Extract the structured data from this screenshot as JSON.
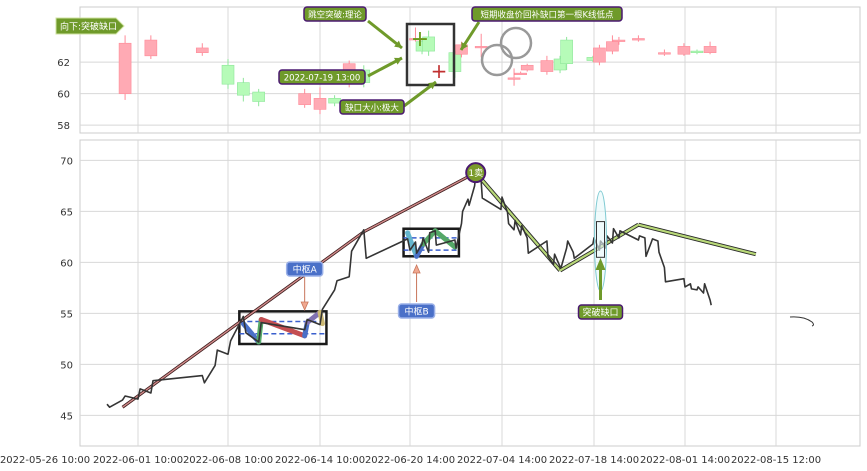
{
  "colors": {
    "up": "#ffaab4",
    "up_edge": "#ff8a98",
    "down": "#b6fbb8",
    "down_edge": "#8ee69a",
    "annotation_fill": "#6f9a2a",
    "annotation_edge": "#4a1870",
    "price_line": "#353535",
    "stroke_main": "#d08a8a",
    "stroke_green": "#b8d878",
    "zs_border": "#1a1a1a",
    "zs_dash": "#3a5fcd",
    "label_blue": "#4a70c8",
    "grid": "#d8d8d8"
  },
  "chart_data": [
    {
      "type": "candlestick",
      "panel": "top",
      "ylim": [
        57.5,
        65.5
      ],
      "yticks": [
        "58",
        "60",
        "62"
      ],
      "grid": true,
      "candles": [
        {
          "x": "2022-05-31 14:00",
          "o": 60.0,
          "c": 63.2,
          "h": 63.7,
          "l": 59.6
        },
        {
          "x": "2022-06-02 10:00",
          "o": 62.4,
          "c": 63.4,
          "h": 63.7,
          "l": 62.2
        },
        {
          "x": "2022-06-06 10:00",
          "o": 62.6,
          "c": 62.9,
          "h": 63.2,
          "l": 62.4
        },
        {
          "x": "2022-06-08 10:00",
          "o": 61.8,
          "c": 60.6,
          "h": 62.2,
          "l": 60.3
        },
        {
          "x": "2022-06-09 10:00",
          "o": 60.7,
          "c": 59.9,
          "h": 61.0,
          "l": 59.5
        },
        {
          "x": "2022-06-10 10:00",
          "o": 60.1,
          "c": 59.5,
          "h": 60.3,
          "l": 59.2
        },
        {
          "x": "2022-06-13 10:00",
          "o": 59.3,
          "c": 60.0,
          "h": 60.3,
          "l": 59.1
        },
        {
          "x": "2022-06-14 10:00",
          "o": 59.0,
          "c": 59.7,
          "h": 60.4,
          "l": 58.7
        },
        {
          "x": "2022-06-15 10:00",
          "o": 59.7,
          "c": 59.4,
          "h": 59.9,
          "l": 59.2
        },
        {
          "x": "2022-06-16 10:00",
          "o": 60.6,
          "c": 61.9,
          "h": 62.1,
          "l": 60.4
        },
        {
          "x": "2022-06-17 10:00",
          "o": 61.5,
          "c": 60.7,
          "h": 61.8,
          "l": 60.4
        },
        {
          "x": "2022-06-21 10:00",
          "o": 63.5,
          "c": 63.5,
          "h": 64.2,
          "l": 63.3
        },
        {
          "x": "2022-06-22 10:00",
          "o": 63.3,
          "c": 62.7,
          "h": 63.5,
          "l": 62.5
        },
        {
          "x": "2022-06-23 10:00",
          "o": 63.6,
          "c": 62.7,
          "h": 64.0,
          "l": 62.4
        },
        {
          "x": "2022-06-27 10:00",
          "o": 62.6,
          "c": 61.4,
          "h": 62.7,
          "l": 61.0
        },
        {
          "x": "2022-06-28 10:00",
          "o": 62.5,
          "c": 63.1,
          "h": 63.3,
          "l": 62.3
        },
        {
          "x": "2022-07-01 10:00",
          "o": 63.0,
          "c": 63.0,
          "h": 63.8,
          "l": 62.3
        },
        {
          "x": "2022-07-06 10:00",
          "o": 61.0,
          "c": 61.0,
          "h": 61.6,
          "l": 60.5
        },
        {
          "x": "2022-07-07 10:00",
          "o": 61.3,
          "c": 61.3,
          "h": 61.4,
          "l": 61.2
        },
        {
          "x": "2022-07-08 10:00",
          "o": 61.5,
          "c": 61.8,
          "h": 61.9,
          "l": 61.4
        },
        {
          "x": "2022-07-11 10:00",
          "o": 61.4,
          "c": 62.1,
          "h": 62.4,
          "l": 61.2
        },
        {
          "x": "2022-07-13 10:00",
          "o": 62.2,
          "c": 61.5,
          "h": 62.4,
          "l": 61.3
        },
        {
          "x": "2022-07-14 10:00",
          "o": 63.4,
          "c": 61.9,
          "h": 63.6,
          "l": 61.5
        },
        {
          "x": "2022-07-18 10:00",
          "o": 62.3,
          "c": 62.1,
          "h": 62.4,
          "l": 62.0
        },
        {
          "x": "2022-07-19 10:00",
          "o": 62.0,
          "c": 62.9,
          "h": 63.1,
          "l": 61.8
        },
        {
          "x": "2022-07-21 10:00",
          "o": 62.7,
          "c": 63.3,
          "h": 63.7,
          "l": 62.5
        },
        {
          "x": "2022-07-22 10:00",
          "o": 63.4,
          "c": 63.4,
          "h": 63.6,
          "l": 63.1
        },
        {
          "x": "2022-07-25 10:00",
          "o": 63.4,
          "c": 63.5,
          "h": 63.7,
          "l": 63.3
        },
        {
          "x": "2022-07-29 10:00",
          "o": 62.6,
          "c": 62.6,
          "h": 62.8,
          "l": 62.4
        },
        {
          "x": "2022-08-01 10:00",
          "o": 62.5,
          "c": 63.0,
          "h": 63.2,
          "l": 62.4
        },
        {
          "x": "2022-08-03 10:00",
          "o": 62.7,
          "c": 62.6,
          "h": 62.8,
          "l": 62.5
        },
        {
          "x": "2022-08-05 10:00",
          "o": 62.6,
          "c": 63.0,
          "h": 63.3,
          "l": 62.5
        }
      ],
      "annotations": {
        "gap_label": "向下:突破缺口",
        "gap_type_label": "跳空突破:理论",
        "gap_time_label": "2022-07-19 13:00",
        "gap_size_label": "缺口大小:极大",
        "gap_target_label": "短期收盘价回补缺口第一根K线低点"
      }
    },
    {
      "type": "line",
      "panel": "bottom",
      "ylim": [
        42,
        72
      ],
      "yticks": [
        "45",
        "50",
        "55",
        "60",
        "65",
        "70"
      ],
      "grid": true,
      "xticks": [
        {
          "value": "2022-05-26 10:00",
          "label": "2022-05-26 10:00"
        },
        {
          "value": "2022-06-01 10:00",
          "label": "2022-06-01 10:00"
        },
        {
          "value": "2022-06-08 10:00",
          "label": "2022-06-08 10:00"
        },
        {
          "value": "2022-06-14 10:00",
          "label": "2022-06-14 10:00"
        },
        {
          "value": "2022-06-20 14:00",
          "label": "2022-06-20 14:00"
        },
        {
          "value": "2022-07-04 14:00",
          "label": "2022-07-04 14:00"
        },
        {
          "value": "2022-07-18 14:00",
          "label": "2022-07-18 14:00"
        },
        {
          "value": "2022-08-01 14:00",
          "label": "2022-08-01 14:00"
        },
        {
          "value": "2022-08-15 12:00",
          "label": "2022-08-15 12:00"
        }
      ],
      "close": [
        [
          "2022-05-30 10:00",
          46.1
        ],
        [
          "2022-05-30 14:00",
          45.8
        ],
        [
          "2022-05-31 10:00",
          46.5
        ],
        [
          "2022-05-31 14:00",
          46.9
        ],
        [
          "2022-06-01 10:00",
          46.6
        ],
        [
          "2022-06-01 14:00",
          47.6
        ],
        [
          "2022-06-02 10:00",
          47.2
        ],
        [
          "2022-06-02 14:00",
          48.4
        ],
        [
          "2022-06-06 10:00",
          48.9
        ],
        [
          "2022-06-06 14:00",
          48.2
        ],
        [
          "2022-06-07 10:00",
          49.9
        ],
        [
          "2022-06-07 14:00",
          51.4
        ],
        [
          "2022-06-08 10:00",
          51.0
        ],
        [
          "2022-06-08 14:00",
          52.3
        ],
        [
          "2022-06-09 10:00",
          54.7
        ],
        [
          "2022-06-09 14:00",
          53.1
        ],
        [
          "2022-06-10 10:00",
          52.2
        ],
        [
          "2022-06-10 14:00",
          54.1
        ],
        [
          "2022-06-13 10:00",
          53.4
        ],
        [
          "2022-06-13 14:00",
          54.4
        ],
        [
          "2022-06-14 10:00",
          53.9
        ],
        [
          "2022-06-14 14:00",
          55.4
        ],
        [
          "2022-06-15 10:00",
          57.3
        ],
        [
          "2022-06-15 14:00",
          58.2
        ],
        [
          "2022-06-16 10:00",
          58.6
        ],
        [
          "2022-06-16 14:00",
          61.1
        ],
        [
          "2022-06-17 10:00",
          63.2
        ],
        [
          "2022-06-17 14:00",
          60.4
        ],
        [
          "2022-06-20 10:00",
          62.3
        ],
        [
          "2022-06-20 14:00",
          61.2
        ],
        [
          "2022-06-21 10:00",
          62.0
        ],
        [
          "2022-06-21 14:00",
          60.9
        ],
        [
          "2022-06-22 10:00",
          61.8
        ],
        [
          "2022-06-22 14:00",
          62.4
        ],
        [
          "2022-06-23 10:00",
          61.0
        ],
        [
          "2022-06-23 14:00",
          62.9
        ],
        [
          "2022-06-24 10:00",
          63.1
        ],
        [
          "2022-06-24 14:00",
          61.7
        ],
        [
          "2022-06-27 10:00",
          62.2
        ],
        [
          "2022-06-27 14:00",
          61.4
        ],
        [
          "2022-06-28 10:00",
          63.8
        ],
        [
          "2022-06-28 14:00",
          65.0
        ],
        [
          "2022-06-29 10:00",
          66.2
        ],
        [
          "2022-06-29 14:00",
          65.6
        ],
        [
          "2022-06-30 10:00",
          67.5
        ],
        [
          "2022-06-30 14:00",
          68.6
        ],
        [
          "2022-07-01 10:00",
          67.9
        ],
        [
          "2022-07-01 14:00",
          66.3
        ],
        [
          "2022-07-04 10:00",
          65.2
        ],
        [
          "2022-07-04 14:00",
          66.4
        ],
        [
          "2022-07-05 10:00",
          64.9
        ],
        [
          "2022-07-05 14:00",
          63.8
        ],
        [
          "2022-07-06 10:00",
          63.2
        ],
        [
          "2022-07-06 14:00",
          64.1
        ],
        [
          "2022-07-07 10:00",
          62.7
        ],
        [
          "2022-07-07 14:00",
          63.6
        ],
        [
          "2022-07-08 10:00",
          62.4
        ],
        [
          "2022-07-08 14:00",
          60.9
        ],
        [
          "2022-07-11 10:00",
          62.1
        ],
        [
          "2022-07-11 14:00",
          60.6
        ],
        [
          "2022-07-12 10:00",
          59.8
        ],
        [
          "2022-07-12 14:00",
          60.8
        ],
        [
          "2022-07-13 10:00",
          59.6
        ],
        [
          "2022-07-13 14:00",
          59.5
        ],
        [
          "2022-07-14 10:00",
          61.4
        ],
        [
          "2022-07-14 14:00",
          62.1
        ],
        [
          "2022-07-15 10:00",
          61.0
        ],
        [
          "2022-07-15 14:00",
          60.4
        ],
        [
          "2022-07-18 10:00",
          61.8
        ],
        [
          "2022-07-18 14:00",
          62.4
        ],
        [
          "2022-07-19 10:00",
          61.2
        ],
        [
          "2022-07-19 14:00",
          62.1
        ],
        [
          "2022-07-20 10:00",
          61.4
        ],
        [
          "2022-07-20 14:00",
          62.6
        ],
        [
          "2022-07-21 10:00",
          61.9
        ],
        [
          "2022-07-21 14:00",
          63.3
        ],
        [
          "2022-07-22 10:00",
          62.4
        ],
        [
          "2022-07-22 14:00",
          63.1
        ],
        [
          "2022-07-25 10:00",
          62.2
        ],
        [
          "2022-07-25 14:00",
          62.6
        ],
        [
          "2022-07-26 10:00",
          62.4
        ],
        [
          "2022-07-26 14:00",
          60.6
        ],
        [
          "2022-07-27 10:00",
          62.0
        ],
        [
          "2022-07-27 14:00",
          62.3
        ],
        [
          "2022-07-28 10:00",
          62.1
        ],
        [
          "2022-07-28 14:00",
          61.0
        ],
        [
          "2022-07-29 10:00",
          59.5
        ],
        [
          "2022-07-29 14:00",
          58.1
        ],
        [
          "2022-08-01 10:00",
          58.4
        ],
        [
          "2022-08-01 14:00",
          57.6
        ],
        [
          "2022-08-02 10:00",
          57.9
        ],
        [
          "2022-08-02 14:00",
          57.4
        ],
        [
          "2022-08-03 10:00",
          57.3
        ],
        [
          "2022-08-03 14:00",
          57.6
        ],
        [
          "2022-08-04 10:00",
          57.0
        ],
        [
          "2022-08-04 14:00",
          57.9
        ],
        [
          "2022-08-05 10:00",
          56.3
        ],
        [
          "2022-08-05 14:00",
          55.8
        ]
      ],
      "stroke": [
        {
          "from": [
            "2022-05-31 10:00",
            45.8
          ],
          "to": [
            "2022-06-17 10:00",
            63.0
          ],
          "color": "main"
        },
        {
          "from": [
            "2022-06-17 10:00",
            63.0
          ],
          "to": [
            "2022-06-30 14:00",
            68.8
          ],
          "color": "main"
        },
        {
          "from": [
            "2022-06-30 14:00",
            68.8
          ],
          "to": [
            "2022-07-13 10:00",
            59.2
          ],
          "color": "green"
        },
        {
          "from": [
            "2022-07-13 10:00",
            59.2
          ],
          "to": [
            "2022-07-25 10:00",
            63.7
          ],
          "color": "green"
        },
        {
          "from": [
            "2022-07-25 10:00",
            63.7
          ],
          "to": [
            "2022-08-12 10:00",
            60.8
          ],
          "color": "green"
        }
      ],
      "zhongshu": [
        {
          "label": "中枢A",
          "x0": "2022-06-09 10:00",
          "x1": "2022-06-14 14:00",
          "y0": 52.0,
          "y1": 55.2,
          "band": [
            53.0,
            54.2
          ],
          "path": [
            [
              "2022-06-09 10:00",
              54.0,
              "#4a70c8"
            ],
            [
              "2022-06-10 10:00",
              52.2,
              "#55a868"
            ],
            [
              "2022-06-10 14:00",
              54.4,
              "#c44e52"
            ],
            [
              "2022-06-13 10:00",
              52.8,
              "#4a70c8"
            ],
            [
              "2022-06-13 14:00",
              54.1,
              "#8172b2"
            ],
            [
              "2022-06-14 10:00",
              55.1,
              "#ccb974"
            ],
            [
              "2022-06-14 14:00",
              54.0,
              "#ccb974"
            ]
          ]
        },
        {
          "label": "中枢B",
          "x0": "2022-06-20 10:00",
          "x1": "2022-06-27 10:00",
          "y0": 60.6,
          "y1": 63.3,
          "band": [
            61.2,
            62.4
          ],
          "path": [
            [
              "2022-06-20 10:00",
              62.9,
              "#64b5cd"
            ],
            [
              "2022-06-21 14:00",
              60.6,
              "#4a70c8"
            ],
            [
              "2022-06-22 14:00",
              61.8,
              "#55a868"
            ],
            [
              "2022-06-24 10:00",
              63.1,
              "#55a868"
            ],
            [
              "2022-06-27 10:00",
              61.5,
              "#55a868"
            ]
          ]
        }
      ],
      "peak_label": "1卖",
      "peak": [
        "2022-06-30 14:00",
        68.8
      ],
      "gap_marker": {
        "label": "突破缺口",
        "x": "2022-07-19 14:00",
        "y_lo": 60.5,
        "y_hi": 64.0
      }
    }
  ]
}
